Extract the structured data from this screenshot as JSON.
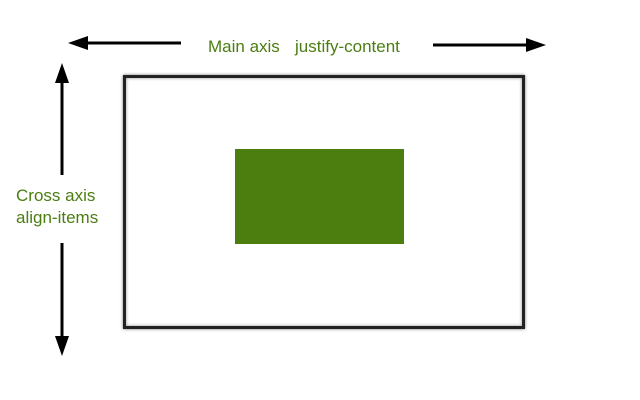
{
  "labels": {
    "main_axis": "Main axis",
    "justify_content": "justify-content",
    "cross_axis": "Cross axis",
    "align_items": "align-items"
  },
  "colors": {
    "label_text": "#4b7d11",
    "item_fill": "#4b7d0f",
    "arrow": "#000000",
    "container_border": "#222222"
  }
}
